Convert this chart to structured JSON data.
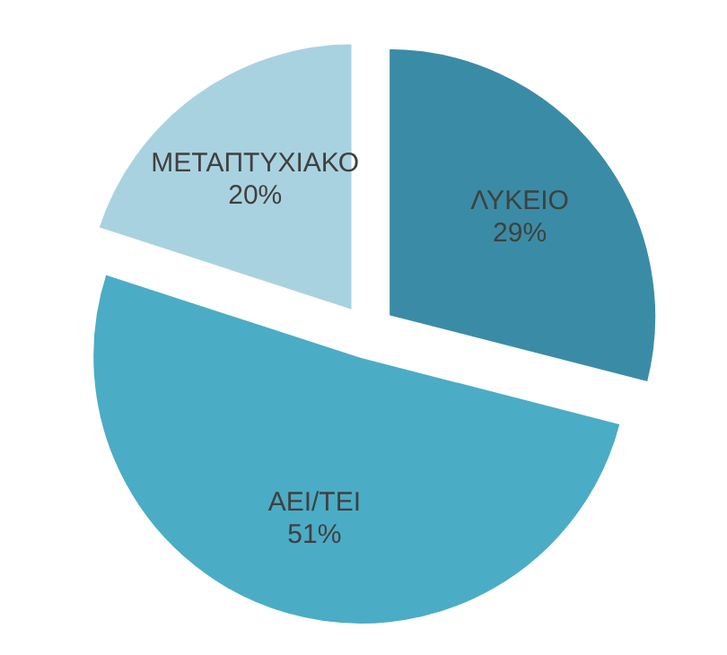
{
  "chart_data": {
    "type": "pie",
    "categories": [
      "ΛΥΚΕΙΟ",
      "ΑΕΙ/ΤΕΙ",
      "ΜΕΤΑΠΤΥΧΙΑΚΟ"
    ],
    "values": [
      29,
      51,
      20
    ],
    "colors": [
      "#3a8ca6",
      "#4bacc6",
      "#a9d2e0"
    ],
    "value_labels": [
      "29%",
      "51%",
      "20%"
    ],
    "legend": false
  }
}
